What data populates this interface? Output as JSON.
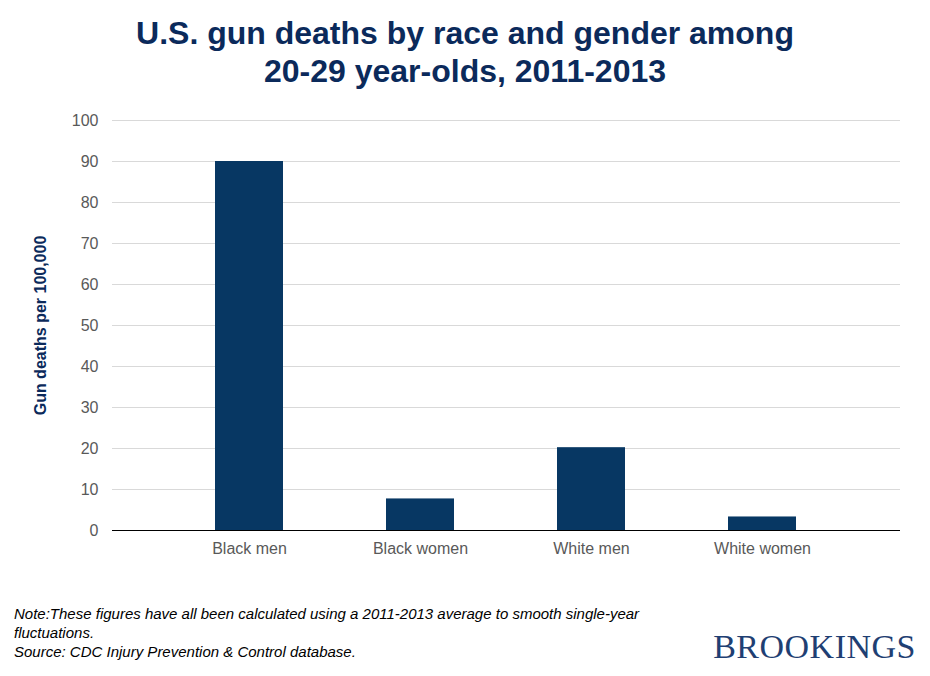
{
  "chart_data": {
    "type": "bar",
    "title": "U.S. gun deaths by race and gender among 20-29 year-olds, 2011-2013",
    "y_label": "Gun deaths per 100,000",
    "categories": [
      "Black men",
      "Black women",
      "White men",
      "White women"
    ],
    "values": [
      90,
      7.7,
      20.2,
      3.3
    ],
    "color": "#073763",
    "ylim": [
      0,
      100
    ],
    "yticks": [
      0,
      10,
      20,
      30,
      40,
      50,
      60,
      70,
      80,
      90,
      100
    ],
    "grid": true,
    "note": "Note:These figures have all been calculated using a 2011-2013 average to smooth single-year fluctuations.",
    "source": "Source: CDC Injury Prevention & Control database.",
    "logo": "BROOKINGS"
  }
}
